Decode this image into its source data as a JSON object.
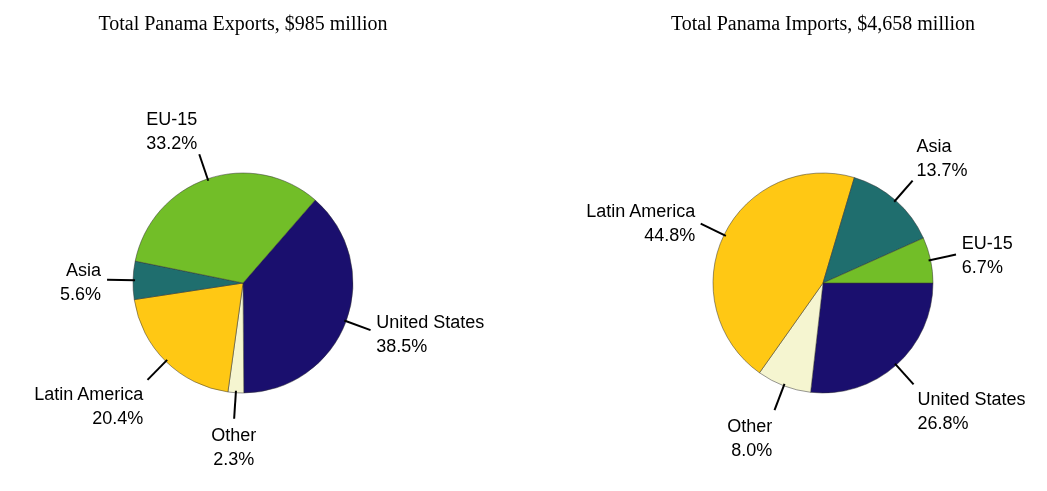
{
  "chart_data": [
    {
      "type": "pie",
      "title": "Total Panama Exports, $985 million",
      "categories": [
        "United States",
        "Other",
        "Latin America",
        "Asia",
        "EU-15"
      ],
      "values": [
        38.5,
        2.3,
        20.4,
        5.6,
        33.2
      ],
      "value_labels": [
        "38.5%",
        "2.3%",
        "20.4%",
        "5.6%",
        "33.2%"
      ],
      "colors": [
        "#1a0f6e",
        "#f5f5d0",
        "#ffc814",
        "#1f6e6e",
        "#72be28"
      ]
    },
    {
      "type": "pie",
      "title": "Total Panama Imports, $4,658 million",
      "categories": [
        "United States",
        "Other",
        "Latin America",
        "Asia",
        "EU-15"
      ],
      "values": [
        26.8,
        8.0,
        44.8,
        13.7,
        6.7
      ],
      "value_labels": [
        "26.8%",
        "8.0%",
        "44.8%",
        "13.7%",
        "6.7%"
      ],
      "colors": [
        "#1a0f6e",
        "#f5f5d0",
        "#ffc814",
        "#1f6e6e",
        "#72be28"
      ]
    }
  ]
}
